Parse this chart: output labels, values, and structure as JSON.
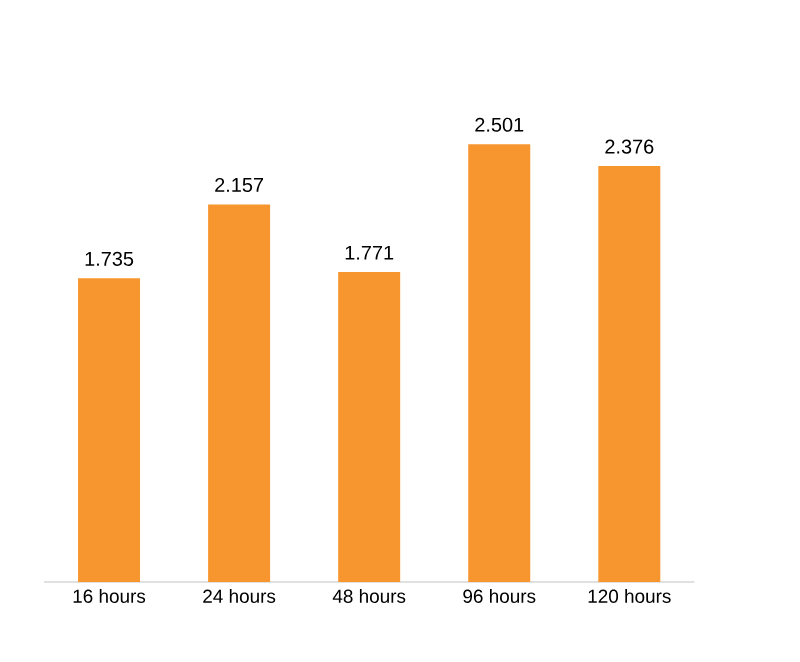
{
  "chart_data": {
    "type": "bar",
    "categories": [
      "16 hours",
      "24 hours",
      "48 hours",
      "96 hours",
      "120 hours"
    ],
    "values": [
      1.735,
      2.157,
      1.771,
      2.501,
      2.376
    ],
    "color": "#f7962f",
    "data_labels": true
  }
}
